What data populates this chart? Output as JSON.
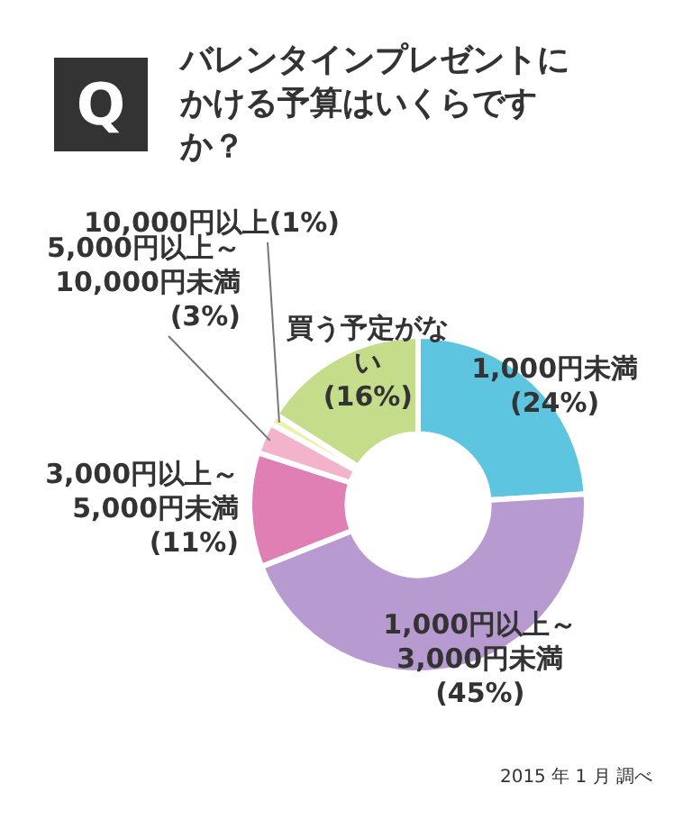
{
  "chart_data": {
    "type": "donut",
    "title": "バレンタインプレゼントにかける予算はいくらですか？",
    "categories": [
      "1,000円未満",
      "1,000円以上～3,000円未満",
      "3,000円以上～5,000円未満",
      "5,000円以上～10,000円未満",
      "10,000円以上",
      "買う予定がない"
    ],
    "values": [
      24,
      45,
      11,
      3,
      1,
      16
    ],
    "value_labels": [
      "(24%)",
      "(45%)",
      "(11%)",
      "(3%)",
      "(1%)",
      "(16%)"
    ],
    "colors": [
      "#5ec5e0",
      "#b79bd0",
      "#e07fb3",
      "#f2b3cb",
      "#edf0a8",
      "#c5dc8a"
    ],
    "legend": false,
    "annotations": [
      "Q",
      "2015 年 1 月 調べ"
    ]
  }
}
